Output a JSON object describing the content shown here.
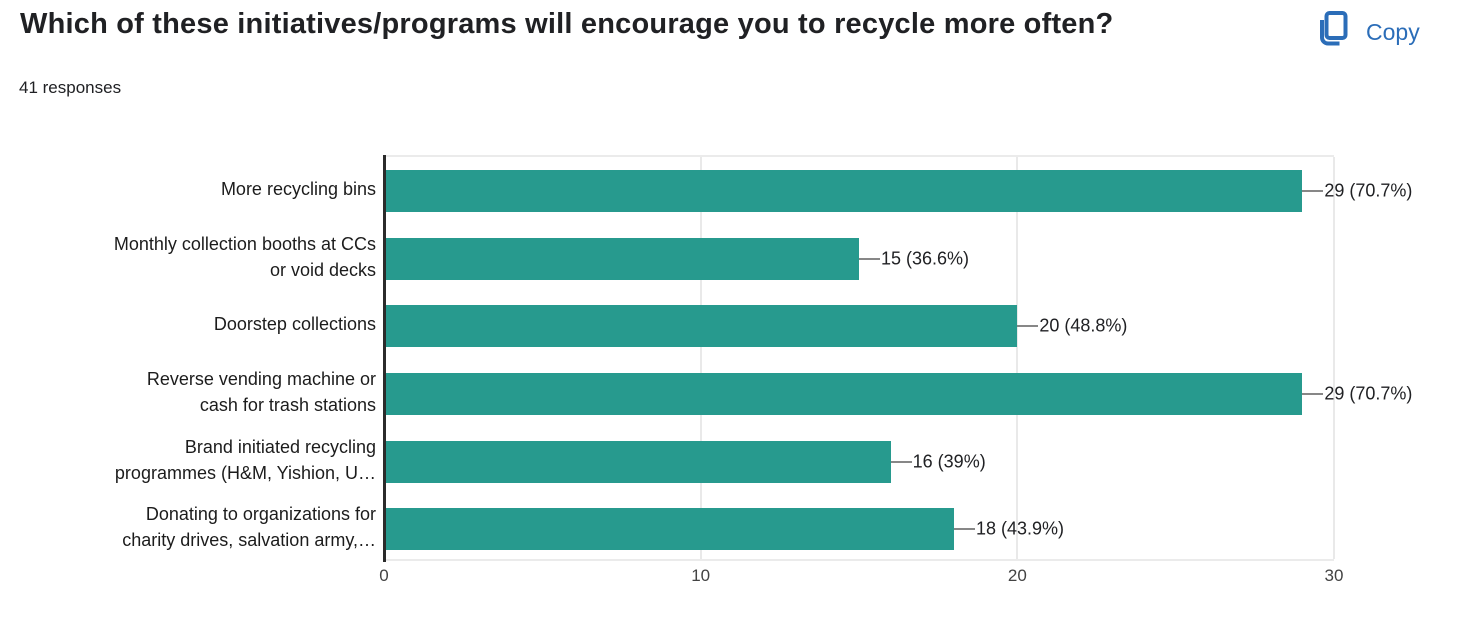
{
  "header": {
    "title": "Which of these initiatives/programs will encourage you to recycle more often?",
    "responses_count": "41 responses",
    "copy_button": {
      "label": "Copy",
      "icon": "copy-icon"
    }
  },
  "colors": {
    "accent_blue": "#2b6db8",
    "bar_teal": "#279a8e",
    "text_dark": "#202124",
    "gridline_gray": "#e9e9e9",
    "axis_dark": "#2b2b2b",
    "connector_gray": "#878787"
  },
  "chart_data": {
    "type": "bar",
    "orientation": "horizontal",
    "title": "",
    "xlabel": "",
    "ylabel": "",
    "categories": [
      "More recycling bins",
      "Monthly collection booths at CCs\nor void decks",
      "Doorstep collections",
      "Reverse vending machine or\ncash for trash stations",
      "Brand initiated recycling\nprogrammes (H&M, Yishion, U…",
      "Donating to organizations for\ncharity drives, salvation army,…"
    ],
    "values": [
      29,
      15,
      20,
      29,
      16,
      18
    ],
    "value_labels": [
      "29 (70.7%)",
      "15 (36.6%)",
      "20 (48.8%)",
      "29 (70.7%)",
      "16 (39%)",
      "18 (43.9%)"
    ],
    "x_ticks": [
      0,
      10,
      20,
      30
    ],
    "xlim": [
      0,
      30
    ],
    "bar_color": "#279a8e",
    "grid": true,
    "legend": false
  }
}
